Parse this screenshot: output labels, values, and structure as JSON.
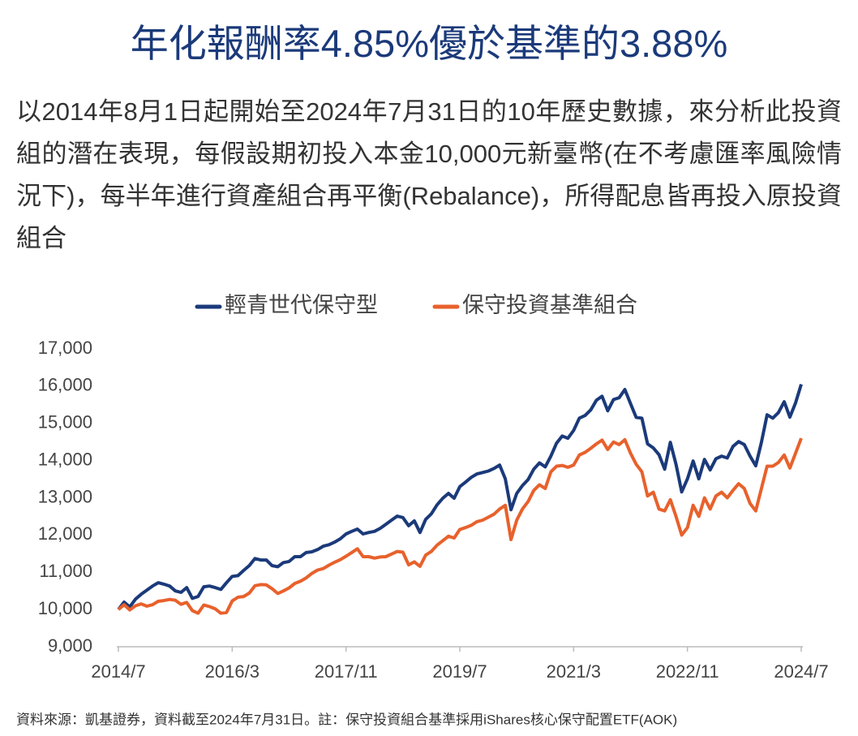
{
  "chart_data": {
    "type": "line",
    "title": "年化報酬率4.85%優於基準的3.88%",
    "subtitle": "以2014年8月1日起開始至2024年7月31日的10年歷史數據，來分析此投資組的潛在表現，每假設期初投入本金10,000元新臺幣(在不考慮匯率風險情況下)，每半年進行資產組合再平衡(Rebalance)，所得配息皆再投入原投資組合",
    "source": "資料來源：凱基證券，資料截至2024年7月31日。註：保守投資組合基準採用iShares核心保守配置ETF(AOK)",
    "legend": "top",
    "categories": [
      "2014/7",
      null,
      null,
      null,
      null,
      null,
      null,
      null,
      null,
      null,
      null,
      null,
      null,
      null,
      null,
      null,
      null,
      null,
      null,
      null,
      "2016/3",
      null,
      null,
      null,
      null,
      null,
      null,
      null,
      null,
      null,
      null,
      null,
      null,
      null,
      null,
      null,
      null,
      null,
      null,
      null,
      "2017/11",
      null,
      null,
      null,
      null,
      null,
      null,
      null,
      null,
      null,
      null,
      null,
      null,
      null,
      null,
      null,
      null,
      null,
      null,
      null,
      "2019/7",
      null,
      null,
      null,
      null,
      null,
      null,
      null,
      null,
      null,
      null,
      null,
      null,
      null,
      null,
      null,
      null,
      null,
      null,
      null,
      "2021/3",
      null,
      null,
      null,
      null,
      null,
      null,
      null,
      null,
      null,
      null,
      null,
      null,
      null,
      null,
      null,
      null,
      null,
      null,
      null,
      "2022/11",
      null,
      null,
      null,
      null,
      null,
      null,
      null,
      null,
      null,
      null,
      null,
      null,
      null,
      null,
      null,
      null,
      null,
      null,
      null,
      "2024/7"
    ],
    "series": [
      {
        "name": "輕青世代保守型",
        "color": "#1b3a7a",
        "values": [
          10000,
          10200,
          10070,
          10280,
          10410,
          10520,
          10630,
          10720,
          10680,
          10630,
          10500,
          10460,
          10590,
          10300,
          10350,
          10610,
          10630,
          10590,
          10540,
          10720,
          10890,
          10910,
          11050,
          11180,
          11370,
          11330,
          11330,
          11180,
          11150,
          11260,
          11290,
          11420,
          11420,
          11530,
          11550,
          11610,
          11700,
          11740,
          11810,
          11900,
          12030,
          12100,
          12160,
          12030,
          12070,
          12100,
          12180,
          12290,
          12400,
          12510,
          12470,
          12250,
          12380,
          12070,
          12420,
          12570,
          12810,
          12990,
          13120,
          12990,
          13300,
          13420,
          13550,
          13640,
          13680,
          13720,
          13790,
          13880,
          13510,
          12680,
          13120,
          13330,
          13490,
          13770,
          13940,
          13830,
          14120,
          14470,
          14660,
          14600,
          14810,
          15140,
          15210,
          15360,
          15620,
          15730,
          15340,
          15640,
          15690,
          15910,
          15530,
          15160,
          15140,
          14450,
          14340,
          14160,
          13770,
          14490,
          13900,
          13160,
          13510,
          13990,
          13510,
          14030,
          13750,
          14050,
          14120,
          14070,
          14380,
          14510,
          14430,
          14120,
          13860,
          14490,
          15230,
          15140,
          15290,
          15580,
          15170,
          15550,
          16050
        ]
      },
      {
        "name": "保守投資基準組合",
        "color": "#e8612c",
        "values": [
          10000,
          10130,
          9990,
          10100,
          10150,
          10090,
          10130,
          10220,
          10240,
          10270,
          10250,
          10140,
          10190,
          9970,
          9900,
          10120,
          10080,
          10020,
          9900,
          9920,
          10230,
          10330,
          10350,
          10440,
          10640,
          10670,
          10660,
          10560,
          10430,
          10500,
          10580,
          10700,
          10760,
          10850,
          10970,
          11060,
          11100,
          11190,
          11270,
          11340,
          11430,
          11530,
          11630,
          11420,
          11420,
          11380,
          11410,
          11420,
          11490,
          11560,
          11540,
          11200,
          11280,
          11160,
          11460,
          11560,
          11730,
          11850,
          11970,
          11920,
          12150,
          12200,
          12260,
          12360,
          12400,
          12480,
          12560,
          12700,
          12800,
          11880,
          12400,
          12700,
          12900,
          13200,
          13350,
          13250,
          13700,
          13850,
          13870,
          13820,
          13880,
          14150,
          14220,
          14330,
          14450,
          14550,
          14300,
          14500,
          14430,
          14560,
          14200,
          13900,
          13700,
          13050,
          13150,
          12700,
          12650,
          12950,
          12500,
          12000,
          12200,
          12800,
          12500,
          13000,
          12700,
          13050,
          13150,
          13000,
          13200,
          13380,
          13250,
          12850,
          12650,
          13250,
          13850,
          13850,
          13950,
          14150,
          13800,
          14200,
          14600
        ]
      }
    ],
    "ylim": [
      9000,
      17000
    ],
    "yticks": [
      {
        "value": 9000,
        "label": "9,000"
      },
      {
        "value": 10000,
        "label": "10,000"
      },
      {
        "value": 11000,
        "label": "11,000"
      },
      {
        "value": 12000,
        "label": "12,000"
      },
      {
        "value": 13000,
        "label": "13,000"
      },
      {
        "value": 14000,
        "label": "14,000"
      },
      {
        "value": 15000,
        "label": "15,000"
      },
      {
        "value": 16000,
        "label": "16,000"
      },
      {
        "value": 17000,
        "label": "17,000"
      }
    ],
    "grid": false
  }
}
